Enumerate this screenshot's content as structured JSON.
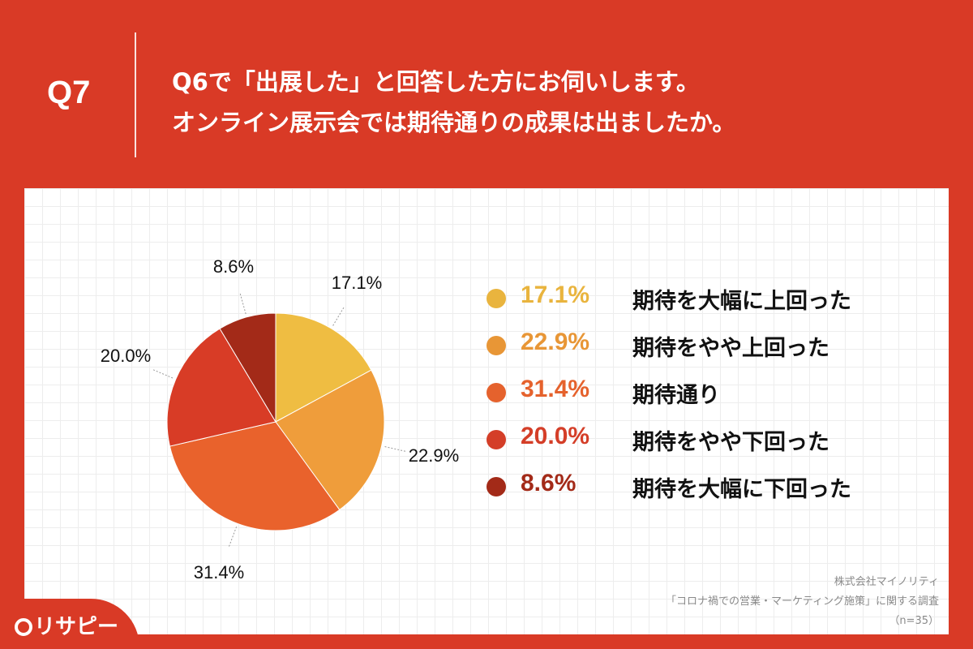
{
  "header": {
    "question_number": "Q7",
    "question_line1": "Q6で「出展した」と回答した方にお伺いします。",
    "question_line2": "オンライン展示会では期待通りの成果は出ましたか。"
  },
  "chart_data": {
    "type": "pie",
    "title": "",
    "slices": [
      {
        "label": "期待を大幅に上回った",
        "value": 17.1,
        "value_label": "17.1%",
        "color": "#efbd42"
      },
      {
        "label": "期待をやや上回った",
        "value": 22.9,
        "value_label": "22.9%",
        "color": "#ef9d3b"
      },
      {
        "label": "期待通り",
        "value": 31.4,
        "value_label": "31.4%",
        "color": "#e9622c"
      },
      {
        "label": "期待をやや下回った",
        "value": 20.0,
        "value_label": "20.0%",
        "color": "#d83c26"
      },
      {
        "label": "期待を大幅に下回った",
        "value": 8.6,
        "value_label": "8.6%",
        "color": "#a32a18"
      }
    ],
    "start_angle": "12 o'clock",
    "direction": "clockwise",
    "legend_position": "right"
  },
  "legend": {
    "items": [
      {
        "value": "17.1%",
        "label": "期待を大幅に上回った",
        "color": "#e9b43e"
      },
      {
        "value": "22.9%",
        "label": "期待をやや上回った",
        "color": "#e89636"
      },
      {
        "value": "31.4%",
        "label": "期待通り",
        "color": "#e5622d"
      },
      {
        "value": "20.0%",
        "label": "期待をやや下回った",
        "color": "#d43e28"
      },
      {
        "value": "8.6%",
        "label": "期待を大幅に下回った",
        "color": "#a32a18"
      }
    ]
  },
  "source": {
    "company": "株式会社マイノリティ",
    "survey": "「コロナ禍での営業・マーケティング施策」に関する調査",
    "sample": "（n=35）"
  },
  "logo": {
    "text": "リサピー"
  }
}
